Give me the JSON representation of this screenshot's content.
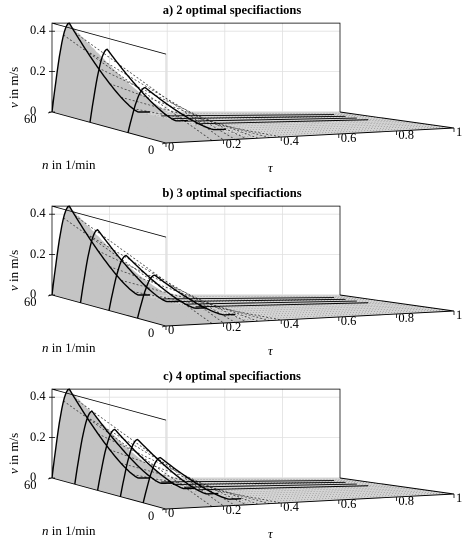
{
  "chart_data": [
    {
      "type": "surface",
      "title": "a) 2 optimal specifiactions",
      "ylabel_var": "v",
      "ylabel_unit": "in m/s",
      "n_label_var": "n",
      "n_label_unit": "in 1/min",
      "x_label": "τ",
      "x_ticks": [
        "0",
        "0.2",
        "0.4",
        "0.6",
        "0.8",
        "1"
      ],
      "z_ticks": [
        "0",
        "0.2",
        "0.4"
      ],
      "n_ticks": [
        "0",
        "60"
      ],
      "peak_v": 0.44,
      "curves": [
        {
          "n": 60,
          "peak_v": 0.44
        },
        {
          "n": 40,
          "peak_v": 0.36
        },
        {
          "n": 20,
          "peak_v": 0.22
        }
      ]
    },
    {
      "type": "surface",
      "title": "b) 3 optimal specifiactions",
      "ylabel_var": "v",
      "ylabel_unit": "in m/s",
      "n_label_var": "n",
      "n_label_unit": "in 1/min",
      "x_label": "τ",
      "x_ticks": [
        "0",
        "0.2",
        "0.4",
        "0.6",
        "0.8",
        "1"
      ],
      "z_ticks": [
        "0",
        "0.2",
        "0.4"
      ],
      "n_ticks": [
        "0",
        "60"
      ],
      "peak_v": 0.44,
      "curves": [
        {
          "n": 60,
          "peak_v": 0.44
        },
        {
          "n": 45,
          "peak_v": 0.36
        },
        {
          "n": 30,
          "peak_v": 0.27
        },
        {
          "n": 15,
          "peak_v": 0.21
        }
      ]
    },
    {
      "type": "surface",
      "title": "c) 4 optimal specifiactions",
      "ylabel_var": "v",
      "ylabel_unit": "in m/s",
      "n_label_var": "n",
      "n_label_unit": "in 1/min",
      "x_label": "τ",
      "x_ticks": [
        "0",
        "0.2",
        "0.4",
        "0.6",
        "0.8",
        "1"
      ],
      "z_ticks": [
        "0",
        "0.2",
        "0.4"
      ],
      "n_ticks": [
        "0",
        "60"
      ],
      "peak_v": 0.44,
      "curves": [
        {
          "n": 60,
          "peak_v": 0.44
        },
        {
          "n": 48,
          "peak_v": 0.36
        },
        {
          "n": 36,
          "peak_v": 0.3
        },
        {
          "n": 24,
          "peak_v": 0.28
        },
        {
          "n": 12,
          "peak_v": 0.22
        }
      ]
    }
  ]
}
